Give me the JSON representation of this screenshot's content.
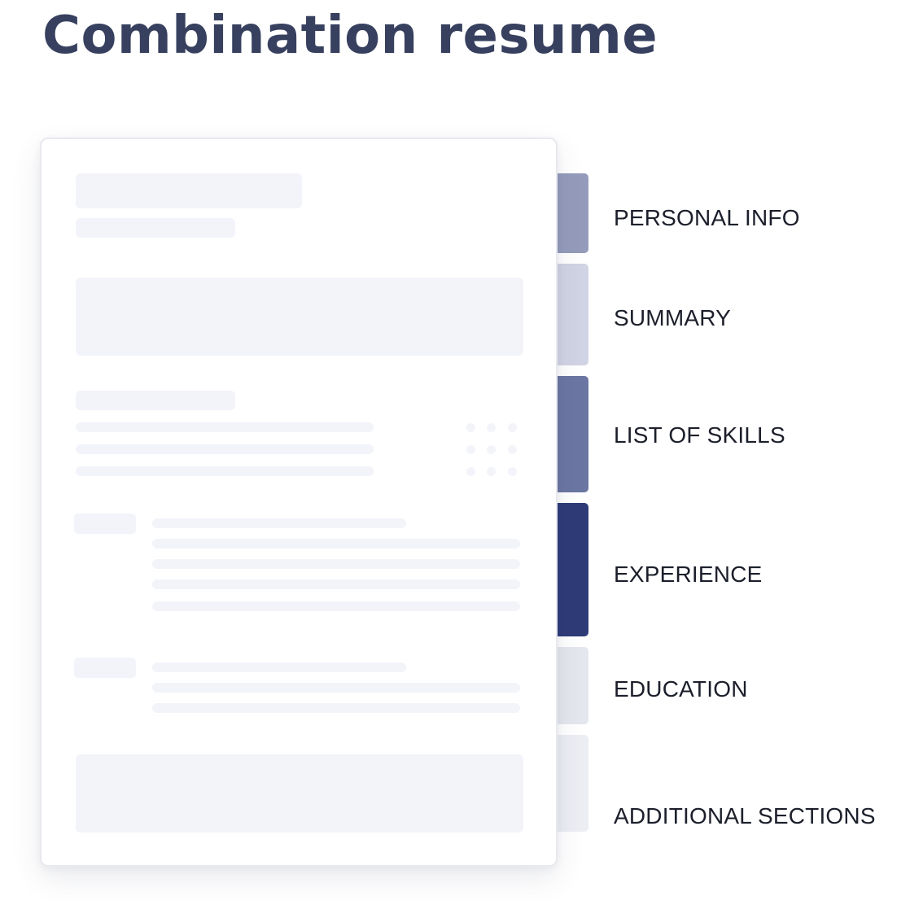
{
  "title": "Combination resume",
  "colors": {
    "title": "#37405e",
    "placeholder": "#f3f4f9",
    "page_border": "#e8e9ee"
  },
  "sections": [
    {
      "label": "PERSONAL INFO",
      "color": "#959cbb"
    },
    {
      "label": "SUMMARY",
      "color": "#d1d4e4"
    },
    {
      "label": "LIST OF SKILLS",
      "color": "#6b76a2"
    },
    {
      "label": "EXPERIENCE",
      "color": "#2e3b77"
    },
    {
      "label": "EDUCATION",
      "color": "#e5e7ef"
    },
    {
      "label": "ADDITIONAL SECTIONS",
      "color": "#edeef4"
    }
  ]
}
